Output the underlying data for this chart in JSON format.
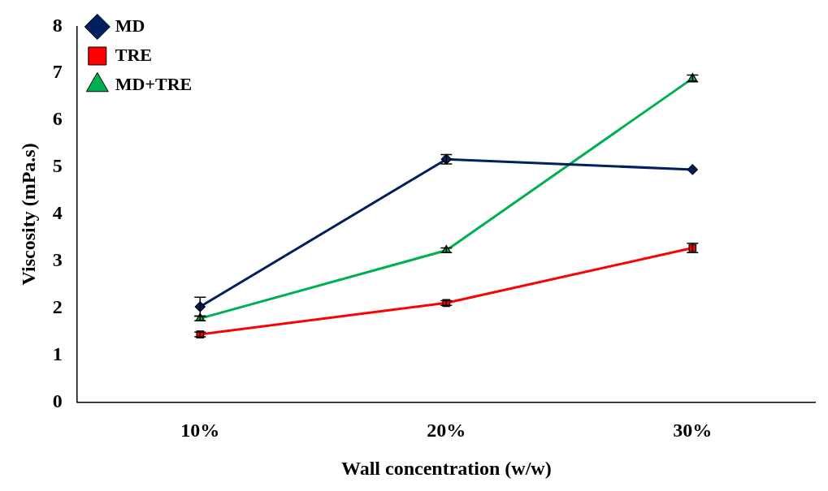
{
  "chart_data": {
    "type": "line",
    "xlabel": "Wall concentration (w/w)",
    "ylabel": "Viscosity (mPa.s)",
    "categories": [
      "10%",
      "20%",
      "30%"
    ],
    "series": [
      {
        "name": "MD",
        "color": "#002060",
        "marker": "diamond",
        "values": [
          2.03,
          5.17,
          4.95
        ],
        "errors": [
          0.2,
          0.1,
          null
        ]
      },
      {
        "name": "TRE",
        "color": "#ff0000",
        "marker": "square",
        "values": [
          1.44,
          2.11,
          3.28
        ],
        "errors": [
          0.05,
          0.05,
          0.1
        ]
      },
      {
        "name": "MD+TRE",
        "color": "#00b050",
        "marker": "triangle",
        "values": [
          1.78,
          3.23,
          6.89
        ],
        "errors": [
          0.05,
          0.05,
          0.07
        ]
      }
    ],
    "ylim": [
      0,
      8
    ],
    "yticks": [
      0,
      1,
      2,
      3,
      4,
      5,
      6,
      7,
      8
    ],
    "grid": false,
    "legend": "top left",
    "line_style": "solid"
  }
}
